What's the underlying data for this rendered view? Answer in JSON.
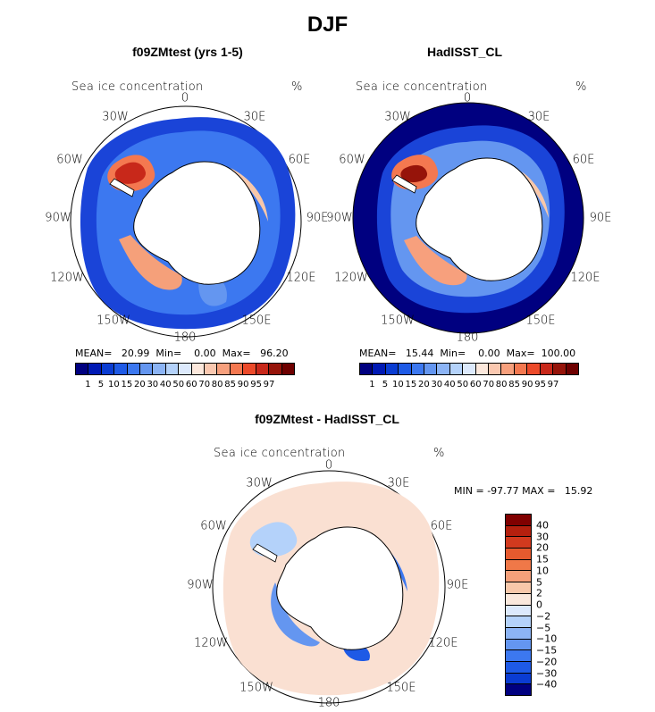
{
  "title": "DJF",
  "panels": [
    {
      "id": "model",
      "title": "f09ZMtest (yrs 1-5)",
      "variable": "Sea ice concentration",
      "units": "%",
      "mean_label": "MEAN=",
      "mean": "20.99",
      "min_label": "Min=",
      "min": "0.00",
      "max_label": "Max=",
      "max": "96.20"
    },
    {
      "id": "obs",
      "title": "HadISST_CL",
      "variable": "Sea ice concentration",
      "units": "%",
      "mean_label": "MEAN=",
      "mean": "15.44",
      "min_label": "Min=",
      "min": "0.00",
      "max_label": "Max=",
      "max": "100.00"
    }
  ],
  "diff_panel": {
    "title": "f09ZMtest - HadISST_CL",
    "variable": "Sea ice concentration",
    "units": "%",
    "min_label": "MIN =",
    "min": "-97.77",
    "max_label": "MAX =",
    "max": "15.92"
  },
  "lon_labels": {
    "n": "0",
    "ne": "30E",
    "ene": "60E",
    "e": "90E",
    "ese": "120E",
    "se": "150E",
    "s": "180",
    "sw": "150W",
    "wsw": "120W",
    "w": "90W",
    "wnw": "60W",
    "nw": "30W"
  },
  "colorbar_main": {
    "ticks": [
      "1",
      "5",
      "10",
      "15",
      "20",
      "30",
      "40",
      "50",
      "60",
      "70",
      "80",
      "85",
      "90",
      "95",
      "97"
    ],
    "colors": [
      "#000080",
      "#0019b4",
      "#0a3cd2",
      "#1e5ae6",
      "#3c78f0",
      "#6496f0",
      "#8cb4f5",
      "#b4d2fa",
      "#dce9fc",
      "#fce8dc",
      "#fac8b0",
      "#f7a07d",
      "#f47850",
      "#ec4a2a",
      "#c8281a",
      "#96140a",
      "#6e0000"
    ]
  },
  "colorbar_diff": {
    "ticks": [
      "40",
      "30",
      "20",
      "15",
      "10",
      "5",
      "2",
      "0",
      "−2",
      "−5",
      "−10",
      "−15",
      "−20",
      "−30",
      "−40"
    ],
    "colors": [
      "#800000",
      "#b4200e",
      "#d23a1e",
      "#e65a2e",
      "#f07848",
      "#f5a07a",
      "#f8c8aa",
      "#fae8dc",
      "#dce9fc",
      "#b4d2fa",
      "#8cb4f5",
      "#6496f0",
      "#3c78f0",
      "#1e5ae6",
      "#0a3cd2",
      "#000080"
    ]
  }
}
